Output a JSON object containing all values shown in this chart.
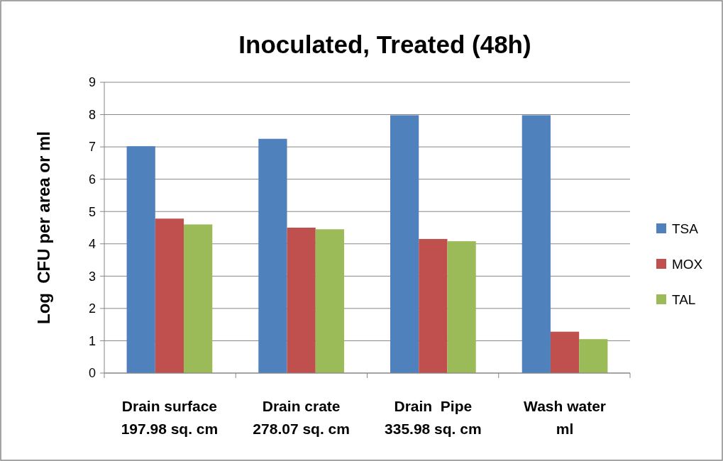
{
  "chart_data": {
    "type": "bar",
    "title": "Inoculated, Treated (48h)",
    "ylabel": "Log  CFU per area or ml",
    "categories": [
      "Drain surface\n197.98 sq. cm",
      "Drain crate\n278.07 sq. cm",
      "Drain  Pipe\n335.98 sq. cm",
      "Wash water\nml"
    ],
    "series": [
      {
        "name": "TSA",
        "color": "#4f81bd",
        "values": [
          7.02,
          7.25,
          7.98,
          7.98
        ]
      },
      {
        "name": "MOX",
        "color": "#c0504d",
        "values": [
          4.78,
          4.5,
          4.15,
          1.28
        ]
      },
      {
        "name": "TAL",
        "color": "#9bbb59",
        "values": [
          4.6,
          4.45,
          4.08,
          1.05
        ]
      }
    ],
    "ylim": [
      0,
      9
    ],
    "yticks": [
      0,
      1,
      2,
      3,
      4,
      5,
      6,
      7,
      8,
      9
    ],
    "grid": "y",
    "legend": "right"
  }
}
